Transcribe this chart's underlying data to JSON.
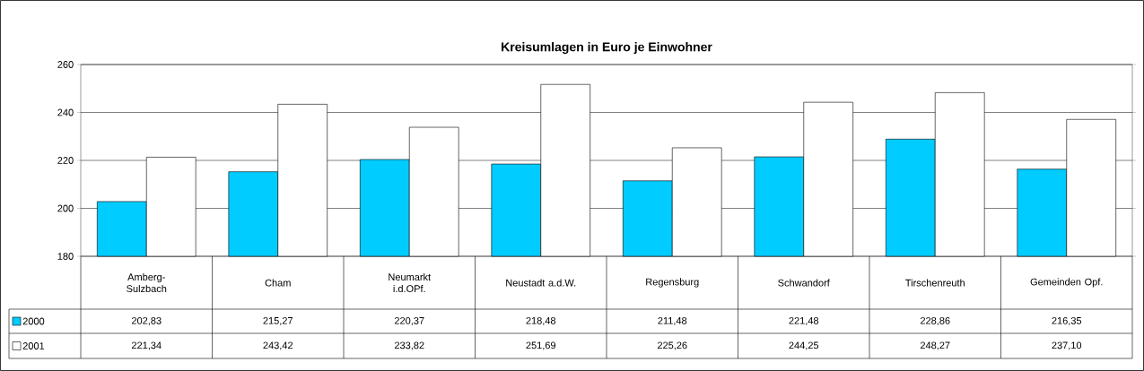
{
  "chart_data": {
    "type": "bar",
    "title": "Kreisumlagen in Euro je Einwohner",
    "categories": [
      "Amberg-Sulzbach",
      "Cham",
      "Neumarkt i.d.OPf.",
      "Neustadt a.d.W.",
      "Regensburg",
      "Schwandorf",
      "Tirschenreuth",
      "Gemeinden Opf."
    ],
    "series": [
      {
        "name": "2000",
        "color": "#00ccff",
        "values": [
          202.83,
          215.27,
          220.37,
          218.48,
          211.48,
          221.48,
          228.86,
          216.35
        ],
        "value_labels": [
          "202,83",
          "215,27",
          "220,37",
          "218,48",
          "211,48",
          "221,48",
          "228,86",
          "216,35"
        ]
      },
      {
        "name": "2001",
        "color": "#ffffff",
        "values": [
          221.34,
          243.42,
          233.82,
          251.69,
          225.26,
          244.25,
          248.27,
          237.1
        ],
        "value_labels": [
          "221,34",
          "243,42",
          "233,82",
          "251,69",
          "225,26",
          "244,25",
          "248,27",
          "237,10"
        ]
      }
    ],
    "ylim": [
      180,
      260
    ],
    "yticks": [
      180,
      200,
      220,
      240,
      260
    ],
    "grid": "y",
    "legend": "left"
  }
}
